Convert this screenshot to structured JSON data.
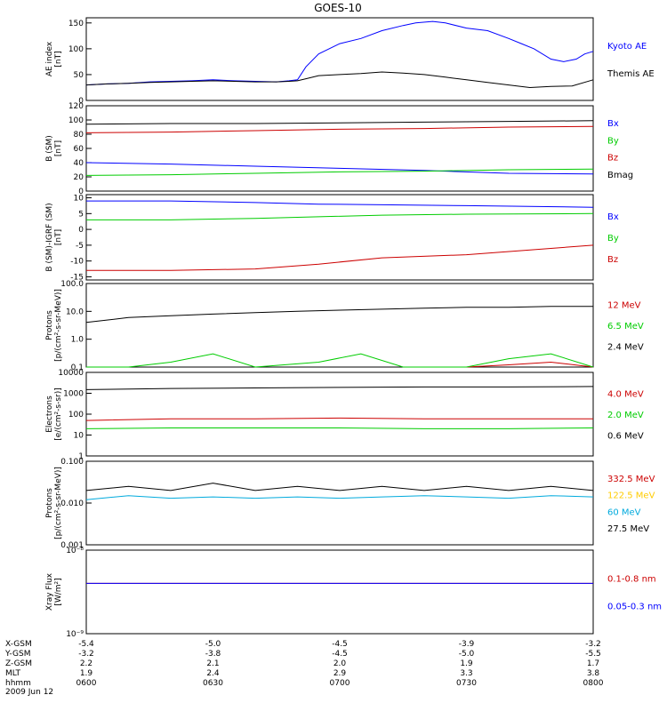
{
  "title": "GOES-10",
  "chart_data": [
    {
      "type": "line",
      "ylabel": "AE index\n[nT]",
      "ylim": [
        0,
        160
      ],
      "yscale": "linear",
      "yticks": [
        0,
        50,
        100,
        150
      ],
      "yticklabels": [
        "0",
        "50",
        "100",
        "150"
      ],
      "xlim": [
        0,
        120
      ],
      "series": [
        {
          "name": "Kyoto AE",
          "color": "#0000ff",
          "points": [
            [
              0,
              30
            ],
            [
              5,
              32
            ],
            [
              10,
              33
            ],
            [
              15,
              36
            ],
            [
              20,
              37
            ],
            [
              25,
              38
            ],
            [
              30,
              40
            ],
            [
              35,
              38
            ],
            [
              40,
              37
            ],
            [
              45,
              36
            ],
            [
              48,
              38
            ],
            [
              50,
              40
            ],
            [
              52,
              65
            ],
            [
              55,
              90
            ],
            [
              60,
              110
            ],
            [
              65,
              120
            ],
            [
              70,
              135
            ],
            [
              75,
              145
            ],
            [
              78,
              150
            ],
            [
              82,
              153
            ],
            [
              85,
              150
            ],
            [
              90,
              140
            ],
            [
              95,
              135
            ],
            [
              100,
              120
            ],
            [
              103,
              110
            ],
            [
              106,
              100
            ],
            [
              110,
              80
            ],
            [
              113,
              75
            ],
            [
              116,
              80
            ],
            [
              118,
              90
            ],
            [
              120,
              95
            ]
          ]
        },
        {
          "name": "Themis AE",
          "color": "#000000",
          "points": [
            [
              0,
              30
            ],
            [
              5,
              32
            ],
            [
              10,
              33
            ],
            [
              15,
              35
            ],
            [
              20,
              36
            ],
            [
              25,
              37
            ],
            [
              30,
              38
            ],
            [
              35,
              37
            ],
            [
              40,
              36
            ],
            [
              45,
              36
            ],
            [
              48,
              37
            ],
            [
              50,
              38
            ],
            [
              52,
              42
            ],
            [
              55,
              48
            ],
            [
              60,
              50
            ],
            [
              65,
              52
            ],
            [
              70,
              55
            ],
            [
              75,
              53
            ],
            [
              80,
              50
            ],
            [
              85,
              45
            ],
            [
              90,
              40
            ],
            [
              95,
              35
            ],
            [
              100,
              30
            ],
            [
              105,
              25
            ],
            [
              110,
              27
            ],
            [
              115,
              28
            ],
            [
              120,
              40
            ]
          ]
        }
      ]
    },
    {
      "type": "line",
      "ylabel": "B (SM)\n[nT]",
      "ylim": [
        0,
        120
      ],
      "yscale": "linear",
      "yticks": [
        0,
        20,
        40,
        60,
        80,
        100,
        120
      ],
      "yticklabels": [
        "0",
        "20",
        "40",
        "60",
        "80",
        "100",
        "120"
      ],
      "xlim": [
        0,
        120
      ],
      "series": [
        {
          "name": "Bx",
          "color": "#0000ff",
          "points": [
            [
              0,
              40
            ],
            [
              20,
              38
            ],
            [
              40,
              35
            ],
            [
              60,
              32
            ],
            [
              80,
              29
            ],
            [
              100,
              25
            ],
            [
              120,
              24
            ]
          ]
        },
        {
          "name": "By",
          "color": "#00cc00",
          "points": [
            [
              0,
              22
            ],
            [
              20,
              23
            ],
            [
              40,
              25
            ],
            [
              60,
              27
            ],
            [
              80,
              28
            ],
            [
              100,
              30
            ],
            [
              120,
              31
            ]
          ]
        },
        {
          "name": "Bz",
          "color": "#cc0000",
          "points": [
            [
              0,
              82
            ],
            [
              20,
              83
            ],
            [
              40,
              85
            ],
            [
              60,
              87
            ],
            [
              80,
              88
            ],
            [
              100,
              90
            ],
            [
              120,
              91
            ]
          ]
        },
        {
          "name": "Bmag",
          "color": "#000000",
          "points": [
            [
              0,
              94
            ],
            [
              20,
              95
            ],
            [
              40,
              95
            ],
            [
              60,
              96
            ],
            [
              80,
              97
            ],
            [
              100,
              98
            ],
            [
              120,
              99
            ]
          ]
        }
      ]
    },
    {
      "type": "line",
      "ylabel": "B (SM)-IGRF (SM)\n[nT]",
      "ylim": [
        -16,
        11
      ],
      "yscale": "linear",
      "yticks": [
        -15,
        -10,
        -5,
        0,
        5,
        10
      ],
      "yticklabels": [
        "-15",
        "-10",
        "-5",
        "0",
        "5",
        "10"
      ],
      "xlim": [
        0,
        120
      ],
      "series": [
        {
          "name": "Bx",
          "color": "#0000ff",
          "points": [
            [
              0,
              9
            ],
            [
              20,
              9
            ],
            [
              40,
              8.5
            ],
            [
              55,
              8
            ],
            [
              70,
              7.8
            ],
            [
              90,
              7.5
            ],
            [
              120,
              7
            ]
          ]
        },
        {
          "name": "By",
          "color": "#00cc00",
          "points": [
            [
              0,
              3
            ],
            [
              20,
              3
            ],
            [
              40,
              3.5
            ],
            [
              55,
              4
            ],
            [
              70,
              4.5
            ],
            [
              90,
              4.8
            ],
            [
              120,
              5
            ]
          ]
        },
        {
          "name": "Bz",
          "color": "#cc0000",
          "points": [
            [
              0,
              -13
            ],
            [
              20,
              -13
            ],
            [
              40,
              -12.5
            ],
            [
              55,
              -11
            ],
            [
              70,
              -9
            ],
            [
              90,
              -8
            ],
            [
              120,
              -5
            ]
          ]
        }
      ]
    },
    {
      "type": "line",
      "ylabel": "Protons\n[p/(cm²-s-sr-MeV)]",
      "ylim": [
        0.1,
        100
      ],
      "yscale": "log",
      "yticks": [
        0.1,
        1.0,
        10.0,
        100.0
      ],
      "yticklabels": [
        "0.1",
        "1.0",
        "10.0",
        "100.0"
      ],
      "xlim": [
        0,
        120
      ],
      "series": [
        {
          "name": "12 MeV",
          "color": "#cc0000",
          "points": [
            [
              90,
              0.1
            ],
            [
              100,
              0.12
            ],
            [
              110,
              0.15
            ],
            [
              120,
              0.1
            ]
          ]
        },
        {
          "name": "6.5 MeV",
          "color": "#00cc00",
          "points": [
            [
              0,
              0.1
            ],
            [
              10,
              0.1
            ],
            [
              20,
              0.15
            ],
            [
              30,
              0.3
            ],
            [
              40,
              0.1
            ],
            [
              55,
              0.15
            ],
            [
              65,
              0.3
            ],
            [
              75,
              0.1
            ],
            [
              90,
              0.1
            ],
            [
              100,
              0.2
            ],
            [
              110,
              0.3
            ],
            [
              120,
              0.1
            ]
          ]
        },
        {
          "name": "2.4 MeV",
          "color": "#000000",
          "points": [
            [
              0,
              4
            ],
            [
              10,
              6
            ],
            [
              20,
              7
            ],
            [
              30,
              8
            ],
            [
              40,
              9
            ],
            [
              50,
              10
            ],
            [
              60,
              11
            ],
            [
              70,
              12
            ],
            [
              80,
              13
            ],
            [
              90,
              14
            ],
            [
              100,
              14
            ],
            [
              110,
              15
            ],
            [
              120,
              15
            ]
          ]
        }
      ]
    },
    {
      "type": "line",
      "ylabel": "Electrons\n[e/(cm²-s-sr)]",
      "ylim": [
        1,
        10000
      ],
      "yscale": "log",
      "yticks": [
        1,
        10,
        100,
        1000,
        10000
      ],
      "yticklabels": [
        "1",
        "10",
        "100",
        "1000",
        "10000"
      ],
      "xlim": [
        0,
        120
      ],
      "series": [
        {
          "name": "4.0 MeV",
          "color": "#cc0000",
          "points": [
            [
              0,
              50
            ],
            [
              20,
              60
            ],
            [
              40,
              60
            ],
            [
              60,
              65
            ],
            [
              80,
              60
            ],
            [
              100,
              60
            ],
            [
              120,
              60
            ]
          ]
        },
        {
          "name": "2.0 MeV",
          "color": "#00cc00",
          "points": [
            [
              0,
              20
            ],
            [
              20,
              22
            ],
            [
              40,
              22
            ],
            [
              60,
              22
            ],
            [
              80,
              20
            ],
            [
              100,
              20
            ],
            [
              120,
              22
            ]
          ]
        },
        {
          "name": "0.6 MeV",
          "color": "#000000",
          "points": [
            [
              0,
              1500
            ],
            [
              20,
              1700
            ],
            [
              40,
              1800
            ],
            [
              60,
              1900
            ],
            [
              80,
              2000
            ],
            [
              100,
              2000
            ],
            [
              120,
              2100
            ]
          ]
        }
      ]
    },
    {
      "type": "line",
      "ylabel": "Protons\n[p/(cm²-s-sr-MeV)]",
      "ylim": [
        0.001,
        0.1
      ],
      "yscale": "log",
      "yticks": [
        0.001,
        0.01,
        0.1
      ],
      "yticklabels": [
        "0.001",
        "0.010",
        "0.100"
      ],
      "xlim": [
        0,
        120
      ],
      "series": [
        {
          "name": "332.5 MeV",
          "color": "#cc0000",
          "points": []
        },
        {
          "name": "122.5 MeV",
          "color": "#ffcc00",
          "points": []
        },
        {
          "name": "60 MeV",
          "color": "#00aadd",
          "points": [
            [
              0,
              0.012
            ],
            [
              10,
              0.015
            ],
            [
              20,
              0.013
            ],
            [
              30,
              0.014
            ],
            [
              40,
              0.013
            ],
            [
              50,
              0.014
            ],
            [
              60,
              0.013
            ],
            [
              70,
              0.014
            ],
            [
              80,
              0.015
            ],
            [
              90,
              0.014
            ],
            [
              100,
              0.013
            ],
            [
              110,
              0.015
            ],
            [
              120,
              0.014
            ]
          ]
        },
        {
          "name": "27.5 MeV",
          "color": "#000000",
          "points": [
            [
              0,
              0.02
            ],
            [
              10,
              0.025
            ],
            [
              20,
              0.02
            ],
            [
              30,
              0.03
            ],
            [
              40,
              0.02
            ],
            [
              50,
              0.025
            ],
            [
              60,
              0.02
            ],
            [
              70,
              0.025
            ],
            [
              80,
              0.02
            ],
            [
              90,
              0.025
            ],
            [
              100,
              0.02
            ],
            [
              110,
              0.025
            ],
            [
              120,
              0.02
            ]
          ]
        }
      ]
    },
    {
      "type": "line",
      "ylabel": "Xray Flux\n[W/m²]",
      "ylim": [
        1e-09,
        1e-08
      ],
      "yscale": "log",
      "yticks": [
        1e-09,
        1e-08
      ],
      "yticklabels": [
        "10⁻⁹",
        "10⁻⁸"
      ],
      "xlim": [
        0,
        120
      ],
      "series": [
        {
          "name": "0.1-0.8 nm",
          "color": "#cc0000",
          "points": [
            [
              0,
              4e-09
            ],
            [
              120,
              4e-09
            ]
          ]
        },
        {
          "name": "0.05-0.3 nm",
          "color": "#0000ff",
          "points": [
            [
              0,
              4e-09
            ],
            [
              120,
              4e-09
            ]
          ]
        }
      ]
    }
  ],
  "xaxis": {
    "rows": [
      {
        "label": "X-GSM",
        "values": [
          "-5.4",
          "-5.0",
          "-4.5",
          "-3.9",
          "-3.2"
        ]
      },
      {
        "label": "Y-GSM",
        "values": [
          "-3.2",
          "-3.8",
          "-4.5",
          "-5.0",
          "-5.5"
        ]
      },
      {
        "label": "Z-GSM",
        "values": [
          "2.2",
          "2.1",
          "2.0",
          "1.9",
          "1.7"
        ]
      },
      {
        "label": "MLT",
        "values": [
          "1.9",
          "2.4",
          "2.9",
          "3.3",
          "3.8"
        ]
      },
      {
        "label": "hhmm",
        "values": [
          "0600",
          "0630",
          "0700",
          "0730",
          "0800"
        ]
      }
    ],
    "date": "2009 Jun 12"
  }
}
